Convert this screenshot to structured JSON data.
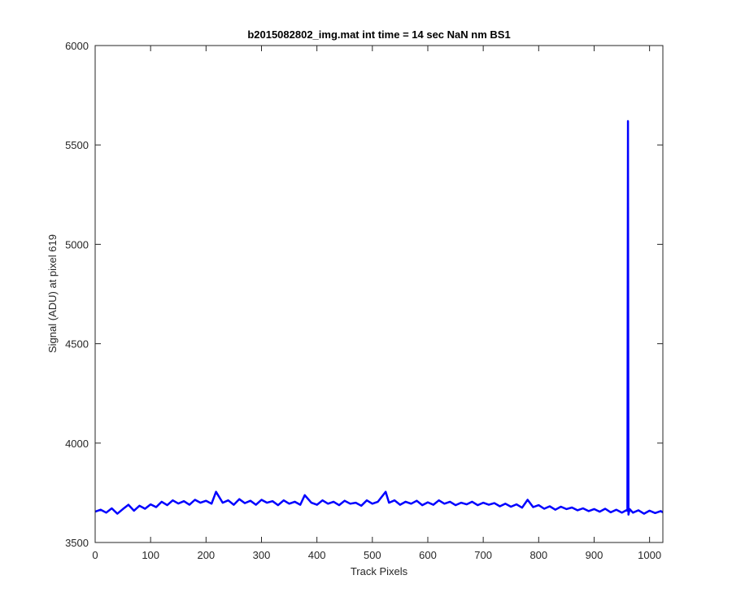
{
  "chart_data": {
    "type": "line",
    "title": "b2015082802_img.mat int time = 14 sec  NaN nm BS1",
    "xlabel": "Track Pixels",
    "ylabel": "Signal (ADU) at pixel 619",
    "xlim": [
      0,
      1024
    ],
    "ylim": [
      3500,
      6000
    ],
    "xticks": [
      0,
      100,
      200,
      300,
      400,
      500,
      600,
      700,
      800,
      900,
      1000
    ],
    "yticks": [
      3500,
      4000,
      4500,
      5000,
      5500,
      6000
    ],
    "grid": false,
    "line_color": "#0000ff",
    "series": [
      {
        "x": [
          0,
          10,
          20,
          30,
          40,
          50,
          60,
          70,
          80,
          90,
          100,
          110,
          120,
          130,
          140,
          150,
          160,
          170,
          180,
          190,
          200,
          210,
          218,
          230,
          240,
          250,
          260,
          270,
          280,
          290,
          300,
          310,
          320,
          330,
          340,
          350,
          360,
          370,
          378,
          390,
          400,
          410,
          420,
          430,
          440,
          450,
          460,
          470,
          480,
          490,
          500,
          510,
          524,
          530,
          540,
          550,
          560,
          570,
          580,
          590,
          600,
          610,
          620,
          630,
          640,
          650,
          660,
          670,
          680,
          690,
          700,
          710,
          720,
          730,
          740,
          750,
          760,
          770,
          780,
          790,
          800,
          810,
          820,
          830,
          840,
          850,
          860,
          870,
          880,
          890,
          900,
          910,
          920,
          930,
          940,
          950,
          958,
          960,
          961,
          962,
          964,
          970,
          980,
          990,
          1000,
          1010,
          1020,
          1024
        ],
        "y": [
          3655,
          3665,
          3650,
          3672,
          3645,
          3668,
          3690,
          3660,
          3685,
          3670,
          3692,
          3678,
          3705,
          3688,
          3712,
          3696,
          3708,
          3690,
          3715,
          3700,
          3710,
          3695,
          3755,
          3700,
          3712,
          3690,
          3718,
          3698,
          3710,
          3690,
          3715,
          3700,
          3708,
          3688,
          3712,
          3695,
          3705,
          3690,
          3738,
          3700,
          3690,
          3712,
          3695,
          3705,
          3688,
          3710,
          3695,
          3700,
          3685,
          3712,
          3695,
          3705,
          3755,
          3700,
          3712,
          3690,
          3705,
          3695,
          3710,
          3688,
          3702,
          3690,
          3712,
          3695,
          3705,
          3688,
          3700,
          3692,
          3705,
          3688,
          3700,
          3690,
          3698,
          3682,
          3695,
          3680,
          3692,
          3675,
          3715,
          3678,
          3688,
          3670,
          3682,
          3665,
          3680,
          3668,
          3676,
          3662,
          3672,
          3658,
          3668,
          3655,
          3670,
          3652,
          3665,
          3650,
          3662,
          3660,
          5620,
          3640,
          3668,
          3650,
          3662,
          3645,
          3660,
          3648,
          3658,
          3652
        ]
      }
    ]
  }
}
